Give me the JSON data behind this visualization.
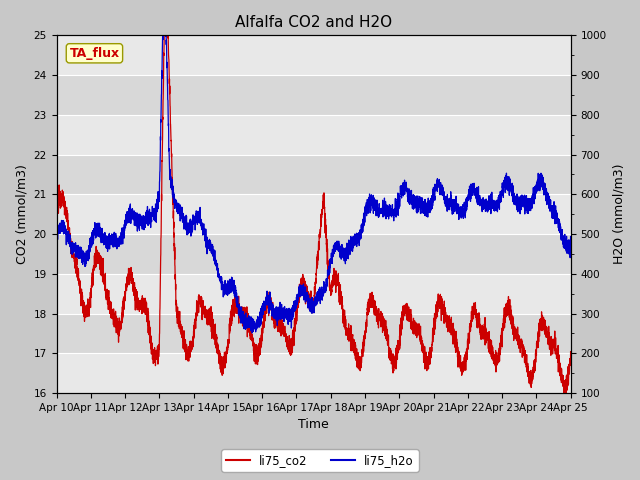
{
  "title": "Alfalfa CO2 and H2O",
  "xlabel": "Time",
  "ylabel_left": "CO2 (mmol/m3)",
  "ylabel_right": "H2O (mmol/m3)",
  "ylim_left": [
    16.0,
    25.0
  ],
  "ylim_right": [
    100,
    1000
  ],
  "yticks_left": [
    16.0,
    17.0,
    18.0,
    19.0,
    20.0,
    21.0,
    22.0,
    23.0,
    24.0,
    25.0
  ],
  "yticks_right": [
    100,
    200,
    300,
    400,
    500,
    600,
    700,
    800,
    900,
    1000
  ],
  "xtick_labels": [
    "Apr 10",
    "Apr 11",
    "Apr 12",
    "Apr 13",
    "Apr 14",
    "Apr 15",
    "Apr 16",
    "Apr 17",
    "Apr 18",
    "Apr 19",
    "Apr 20",
    "Apr 21",
    "Apr 22",
    "Apr 23",
    "Apr 24",
    "Apr 25"
  ],
  "color_co2": "#cc0000",
  "color_h2o": "#0000cc",
  "legend_label_co2": "li75_co2",
  "legend_label_h2o": "li75_h2o",
  "annotation_text": "TA_flux",
  "annotation_color": "#cc0000",
  "annotation_bg": "#ffffcc",
  "fig_bg": "#c8c8c8",
  "plot_bg": "#e8e8e8",
  "grid_color": "#ffffff",
  "title_fontsize": 11,
  "label_fontsize": 9,
  "tick_fontsize": 7.5,
  "linewidth": 0.9
}
